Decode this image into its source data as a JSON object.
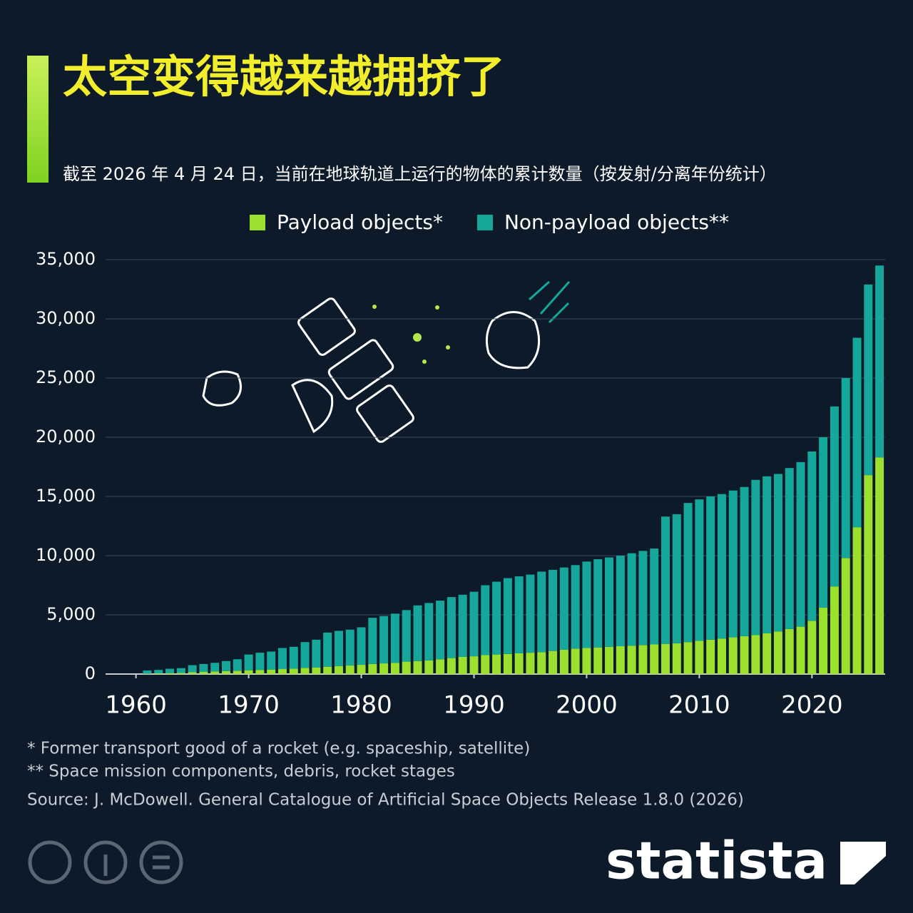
{
  "chart_data": {
    "type": "stacked_bar",
    "title": "太空变得越来越拥挤了",
    "subtitle": "截至 2026 年 4 月 24 日，当前在地球轨道上运行的物体的累计数量（按发射/分离年份统计）",
    "x": [
      1960,
      1961,
      1962,
      1963,
      1964,
      1965,
      1966,
      1967,
      1968,
      1969,
      1970,
      1971,
      1972,
      1973,
      1974,
      1975,
      1976,
      1977,
      1978,
      1979,
      1980,
      1981,
      1982,
      1983,
      1984,
      1985,
      1986,
      1987,
      1988,
      1989,
      1990,
      1991,
      1992,
      1993,
      1994,
      1995,
      1996,
      1997,
      1998,
      1999,
      2000,
      2001,
      2002,
      2003,
      2004,
      2005,
      2006,
      2007,
      2008,
      2009,
      2010,
      2011,
      2012,
      2013,
      2014,
      2015,
      2016,
      2017,
      2018,
      2019,
      2020,
      2021,
      2022,
      2023,
      2024,
      2025,
      2026
    ],
    "series": [
      {
        "name": "Payload objects*",
        "color": "#9be02e",
        "values": [
          0,
          30,
          60,
          80,
          100,
          150,
          180,
          220,
          250,
          280,
          320,
          350,
          380,
          420,
          450,
          520,
          560,
          620,
          680,
          720,
          780,
          850,
          900,
          950,
          1050,
          1100,
          1150,
          1250,
          1350,
          1450,
          1500,
          1600,
          1650,
          1700,
          1750,
          1800,
          1850,
          1950,
          2050,
          2150,
          2200,
          2250,
          2300,
          2350,
          2400,
          2450,
          2500,
          2550,
          2600,
          2700,
          2800,
          2900,
          3000,
          3100,
          3200,
          3300,
          3450,
          3600,
          3800,
          4000,
          4500,
          5600,
          7400,
          9800,
          12400,
          16800,
          18300
        ]
      },
      {
        "name": "Non-payload objects**",
        "color": "#14a79a",
        "values": [
          0,
          270,
          290,
          370,
          400,
          600,
          670,
          730,
          850,
          970,
          1330,
          1450,
          1520,
          1780,
          1850,
          2180,
          2340,
          2880,
          2970,
          3030,
          3170,
          3900,
          4000,
          4150,
          4350,
          4700,
          4850,
          4950,
          5150,
          5250,
          5450,
          5900,
          6150,
          6400,
          6500,
          6600,
          6800,
          6850,
          6950,
          7050,
          7300,
          7450,
          7550,
          7650,
          7800,
          7950,
          8100,
          10750,
          10900,
          11750,
          11950,
          12100,
          12200,
          12400,
          12600,
          13100,
          13250,
          13300,
          13600,
          13900,
          14300,
          14400,
          15200,
          15200,
          16000,
          16100,
          16200
        ]
      }
    ],
    "xlim": [
      1957.3,
      2026.5
    ],
    "xticks": [
      1960,
      1970,
      1980,
      1990,
      2000,
      2010,
      2020
    ],
    "ylim": [
      0,
      35000
    ],
    "yticks": [
      0,
      {
        "value": 5000,
        "label": "5,000"
      },
      {
        "value": 10000,
        "label": "10,000"
      },
      {
        "value": 15000,
        "label": "15,000"
      },
      {
        "value": 20000,
        "label": "20,000"
      },
      {
        "value": 25000,
        "label": "25,000"
      },
      {
        "value": 30000,
        "label": "30,000"
      },
      {
        "value": 35000,
        "label": "35,000"
      }
    ],
    "grid": true,
    "legend": "top",
    "footnotes": [
      "*   Former transport good of a rocket (e.g. spaceship, satellite)",
      "** Space mission components, debris, rocket stages"
    ],
    "source": "Source: J. McDowell. General Catalogue of Artificial Space Objects Release 1.8.0 (2026)",
    "brand": "statista"
  }
}
